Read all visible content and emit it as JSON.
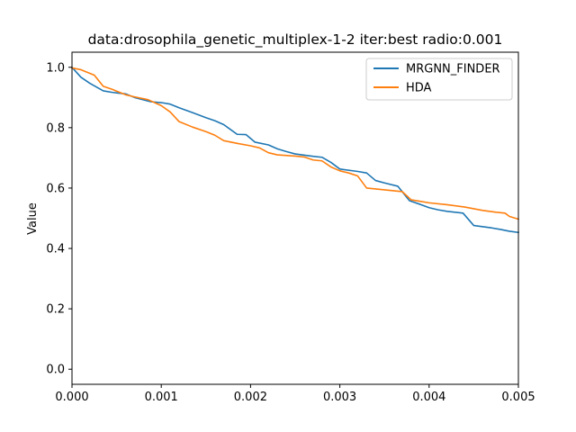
{
  "chart_data": {
    "type": "line",
    "title": "data:drosophila_genetic_multiplex-1-2 iter:best radio:0.001",
    "xlabel": "",
    "ylabel": "Value",
    "xlim": [
      0,
      0.005
    ],
    "ylim": [
      -0.05,
      1.05
    ],
    "xticks": [
      0,
      0.001,
      0.002,
      0.003,
      0.004,
      0.005
    ],
    "xtick_labels": [
      "0.000",
      "0.001",
      "0.002",
      "0.003",
      "0.004",
      "0.005"
    ],
    "yticks": [
      0,
      0.2,
      0.4,
      0.6,
      0.8,
      1.0
    ],
    "ytick_labels": [
      "0.0",
      "0.2",
      "0.4",
      "0.6",
      "0.8",
      "1.0"
    ],
    "grid": false,
    "legend_position": "upper-right",
    "series": [
      {
        "name": "MRGNN_FINDER",
        "color": "#1f77b4",
        "x": [
          0,
          0.0001,
          0.0002,
          0.00035,
          0.00045,
          0.0006,
          0.0007,
          0.00088,
          0.001,
          0.0011,
          0.0012,
          0.00135,
          0.0015,
          0.0016,
          0.0017,
          0.00185,
          0.00195,
          0.00205,
          0.0022,
          0.0023,
          0.0024,
          0.0025,
          0.0027,
          0.0028,
          0.0029,
          0.003,
          0.0032,
          0.0033,
          0.0034,
          0.0035,
          0.00365,
          0.00378,
          0.0039,
          0.004,
          0.0041,
          0.0042,
          0.00438,
          0.0045,
          0.0047,
          0.0048,
          0.0049,
          0.005
        ],
        "y": [
          1.0,
          0.967,
          0.947,
          0.922,
          0.917,
          0.912,
          0.9,
          0.886,
          0.883,
          0.878,
          0.866,
          0.85,
          0.833,
          0.823,
          0.81,
          0.778,
          0.777,
          0.752,
          0.743,
          0.73,
          0.721,
          0.713,
          0.705,
          0.702,
          0.685,
          0.663,
          0.655,
          0.65,
          0.625,
          0.617,
          0.606,
          0.558,
          0.546,
          0.535,
          0.528,
          0.523,
          0.517,
          0.476,
          0.468,
          0.463,
          0.457,
          0.453
        ]
      },
      {
        "name": "HDA",
        "color": "#ff7f0e",
        "x": [
          0,
          0.0001,
          0.00025,
          0.00035,
          0.00045,
          0.0006,
          0.0007,
          0.00085,
          0.001,
          0.0011,
          0.0012,
          0.00135,
          0.0015,
          0.0016,
          0.0017,
          0.00185,
          0.002,
          0.0021,
          0.0022,
          0.0023,
          0.0025,
          0.0026,
          0.0027,
          0.0028,
          0.0029,
          0.003,
          0.0031,
          0.0032,
          0.0033,
          0.0035,
          0.0036,
          0.0037,
          0.0038,
          0.0039,
          0.004,
          0.0042,
          0.0044,
          0.0046,
          0.00475,
          0.00485,
          0.0049,
          0.005
        ],
        "y": [
          0.998,
          0.992,
          0.974,
          0.937,
          0.927,
          0.909,
          0.902,
          0.893,
          0.873,
          0.852,
          0.82,
          0.802,
          0.787,
          0.775,
          0.757,
          0.748,
          0.74,
          0.733,
          0.717,
          0.71,
          0.706,
          0.703,
          0.693,
          0.69,
          0.67,
          0.657,
          0.65,
          0.64,
          0.6,
          0.594,
          0.591,
          0.588,
          0.561,
          0.556,
          0.551,
          0.545,
          0.537,
          0.526,
          0.52,
          0.517,
          0.506,
          0.497
        ]
      }
    ]
  }
}
